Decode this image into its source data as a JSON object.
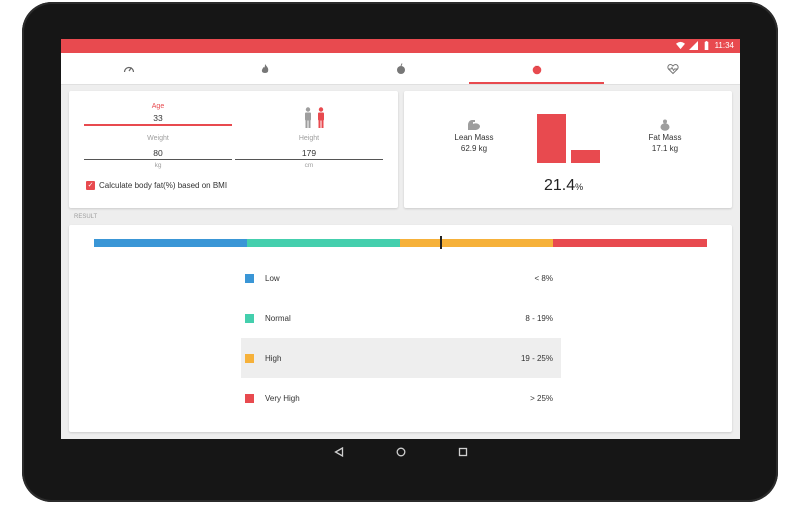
{
  "status_bar": {
    "time": "11:34",
    "color": "#e84a4f"
  },
  "tabs": [
    {
      "icon": "speedometer-icon",
      "active": false
    },
    {
      "icon": "flame-icon",
      "active": false
    },
    {
      "icon": "apple-icon",
      "active": false
    },
    {
      "icon": "tomato-icon",
      "active": true
    },
    {
      "icon": "heartbeat-icon",
      "active": false
    }
  ],
  "inputs": {
    "age": {
      "label": "Age",
      "value": "33"
    },
    "weight": {
      "label": "Weight",
      "value": "80",
      "unit": "kg"
    },
    "height": {
      "label": "Height",
      "value": "179",
      "unit": "cm"
    },
    "gender_icons": [
      "male-figure-icon",
      "female-figure-icon"
    ],
    "bmi_checkbox": {
      "label": "Calculate body fat(%) based on BMI",
      "checked": true
    }
  },
  "mass": {
    "lean": {
      "label": "Lean Mass",
      "value": "62.9 kg",
      "icon": "muscle-arm-icon"
    },
    "fat": {
      "label": "Fat Mass",
      "value": "17.1 kg",
      "icon": "fat-body-icon"
    },
    "bar_color": "#e84a4f",
    "body_fat_value": "21.4",
    "body_fat_unit": "%"
  },
  "result": {
    "section_label": "RESULT",
    "marker_percent": 21.4,
    "scale_segments": [
      "#3a96d6",
      "#44cfad",
      "#f6b13a",
      "#e84a4f"
    ],
    "categories": [
      {
        "name": "Low",
        "range": "< 8%",
        "color": "#3a96d6",
        "highlight": false
      },
      {
        "name": "Normal",
        "range": "8 - 19%",
        "color": "#44cfad",
        "highlight": false
      },
      {
        "name": "High",
        "range": "19 - 25%",
        "color": "#f6b13a",
        "highlight": true
      },
      {
        "name": "Very High",
        "range": "> 25%",
        "color": "#e84a4f",
        "highlight": false
      }
    ]
  },
  "navigation": [
    "back-icon",
    "home-icon",
    "recents-icon"
  ]
}
